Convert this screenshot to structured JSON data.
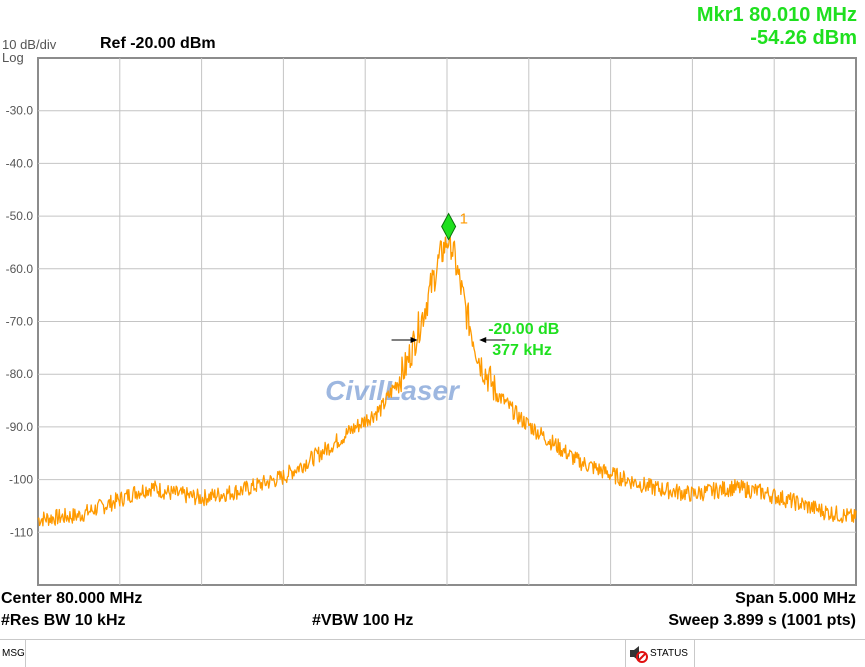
{
  "marker_readout": {
    "line1": "Mkr1 80.010 MHz",
    "line2": "-54.26 dBm"
  },
  "scale": {
    "per_div": "10 dB/div",
    "mode": "Log"
  },
  "ref_level": "Ref -20.00 dBm",
  "footer": {
    "center": "Center 80.000 MHz",
    "span": "Span 5.000 MHz",
    "res_bw": "#Res BW 10 kHz",
    "vbw": "#VBW 100 Hz",
    "sweep": "Sweep  3.899 s (1001 pts)"
  },
  "status_bar": {
    "msg": "MSG",
    "status": "STATUS"
  },
  "watermark": "CivilLaser",
  "chart_data": {
    "type": "line",
    "title": "",
    "xlabel": "",
    "ylabel": "",
    "x_unit": "MHz",
    "y_unit": "dBm",
    "xlim": [
      77.5,
      82.5
    ],
    "ylim": [
      -120,
      -20
    ],
    "grid": true,
    "ytick_labels": [
      "-30.0",
      "-40.0",
      "-50.0",
      "-60.0",
      "-70.0",
      "-80.0",
      "-90.0",
      "-100",
      "-110"
    ],
    "ytick_values": [
      -30,
      -40,
      -50,
      -60,
      -70,
      -80,
      -90,
      -100,
      -110
    ],
    "trace_color": "#ff9a00",
    "series": [
      {
        "values": [
          [
            77.5,
            -107.5
          ],
          [
            77.75,
            -106.8
          ],
          [
            78.0,
            -103.8
          ],
          [
            78.1,
            -102.3
          ],
          [
            78.2,
            -101.5
          ],
          [
            78.3,
            -102.5
          ],
          [
            78.5,
            -103.5
          ],
          [
            78.75,
            -102.0
          ],
          [
            79.0,
            -99.5
          ],
          [
            79.25,
            -94.5
          ],
          [
            79.4,
            -91.0
          ],
          [
            79.6,
            -86.5
          ],
          [
            79.75,
            -78.5
          ],
          [
            79.85,
            -69.0
          ],
          [
            79.95,
            -58.5
          ],
          [
            80.0,
            -54.5
          ],
          [
            80.02,
            -54.3
          ],
          [
            80.06,
            -60.0
          ],
          [
            80.12,
            -68.5
          ],
          [
            80.2,
            -77.5
          ],
          [
            80.3,
            -83.5
          ],
          [
            80.45,
            -88.5
          ],
          [
            80.6,
            -92.0
          ],
          [
            80.8,
            -96.5
          ],
          [
            81.0,
            -99.0
          ],
          [
            81.25,
            -101.5
          ],
          [
            81.5,
            -102.8
          ],
          [
            81.75,
            -101.5
          ],
          [
            81.9,
            -102.2
          ],
          [
            82.1,
            -104.0
          ],
          [
            82.3,
            -106.0
          ],
          [
            82.5,
            -107.3
          ]
        ]
      }
    ],
    "marker": {
      "label": "1",
      "x": 80.01,
      "y": -54.26,
      "color": "#1fe01f"
    },
    "bandwidth_annotation": {
      "db": "-20.00 dB",
      "bw": "377 kHz",
      "x_left": 79.82,
      "x_right": 80.197,
      "y": -73.5
    }
  }
}
